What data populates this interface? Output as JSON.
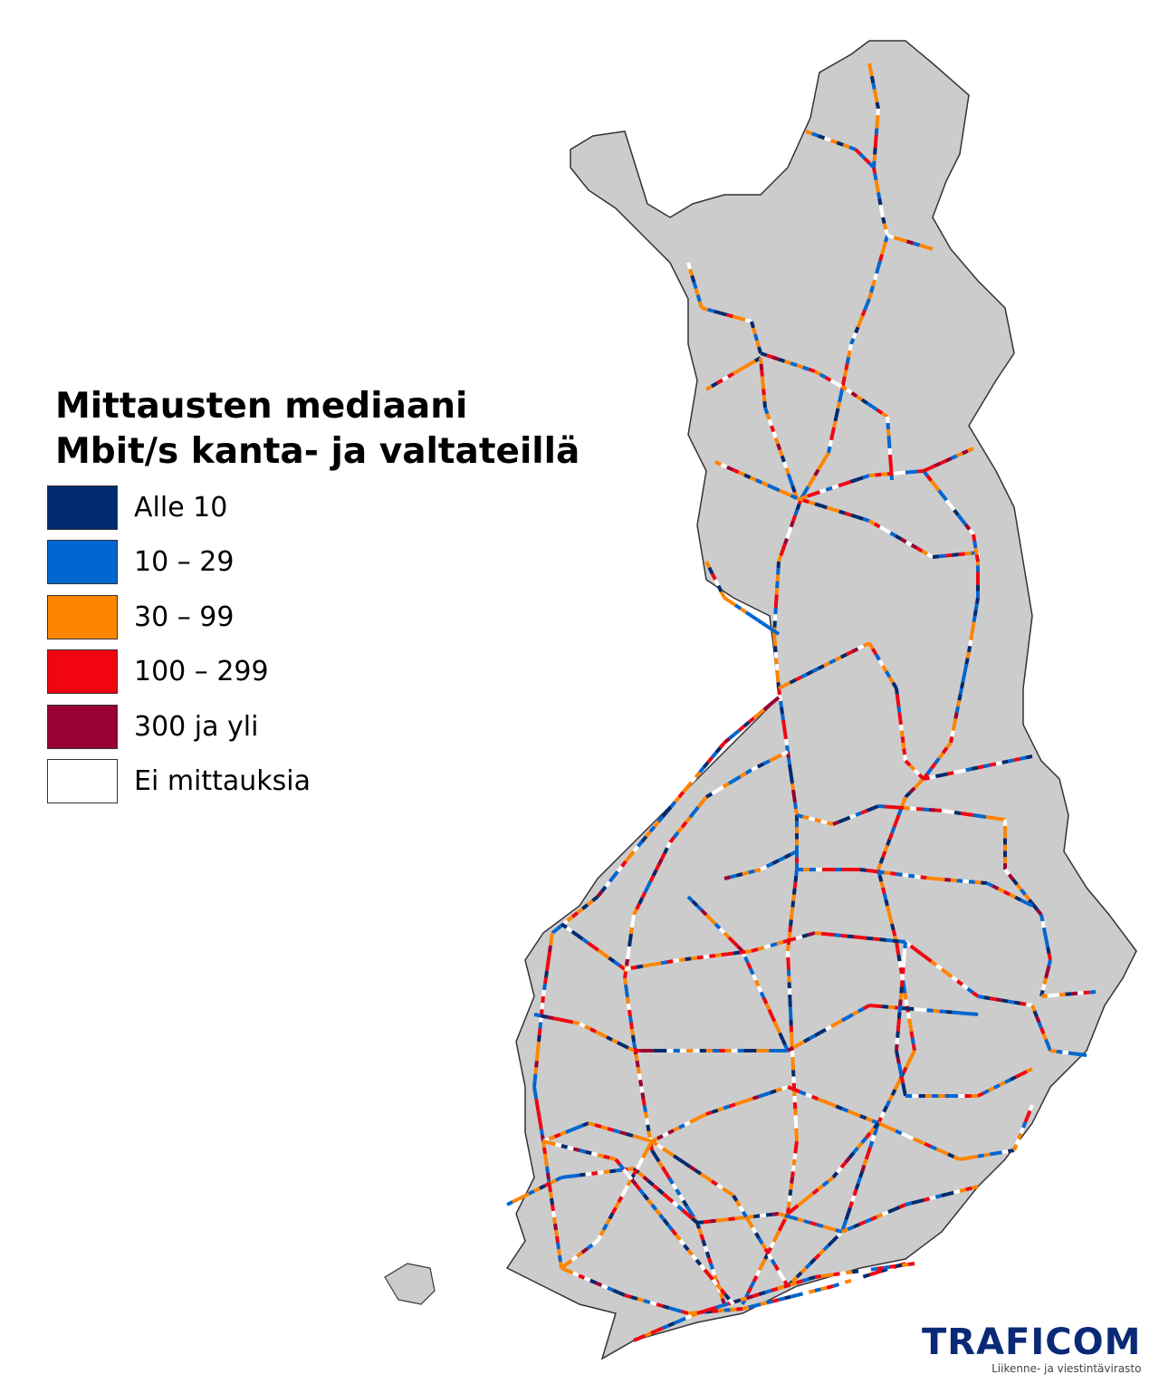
{
  "legend": {
    "title_line1": "Mittausten mediaani",
    "title_line2": "Mbit/s kanta- ja valtateillä",
    "items": [
      {
        "label": "Alle 10",
        "color": "#002a6e"
      },
      {
        "label": "10 – 29",
        "color": "#0066d0"
      },
      {
        "label": "30 – 99",
        "color": "#ff8400"
      },
      {
        "label": "100 – 299",
        "color": "#f00510"
      },
      {
        "label": "300 ja yli",
        "color": "#990033"
      },
      {
        "label": "Ei mittauksia",
        "color": "#ffffff"
      }
    ]
  },
  "map": {
    "land_color": "#cccccc",
    "border_color": "#333333"
  },
  "logo": {
    "name": "TRAFICOM",
    "subtitle": "Liikenne- ja viestintävirasto"
  }
}
